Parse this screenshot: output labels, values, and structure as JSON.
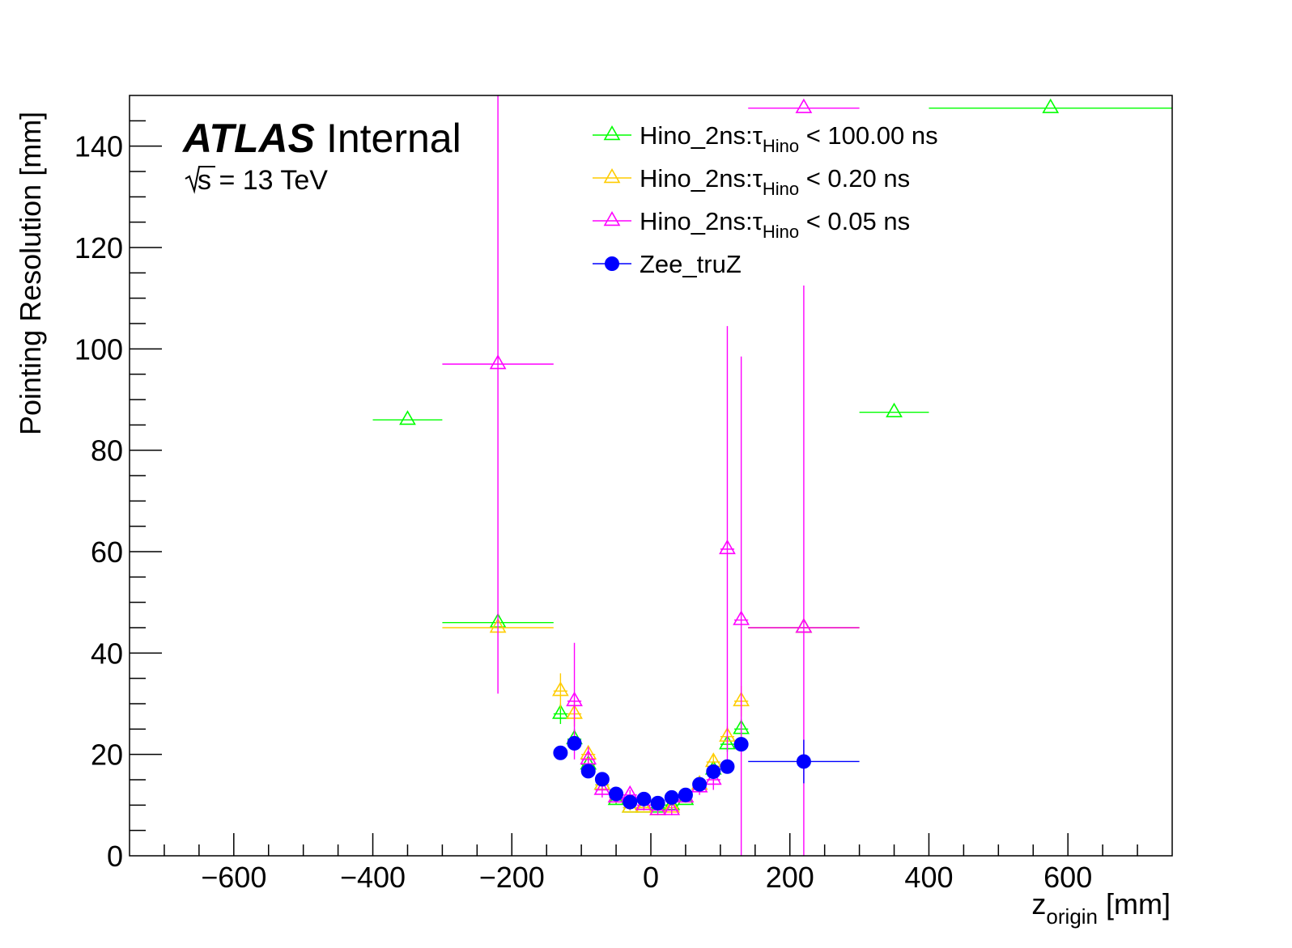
{
  "chart_data": {
    "type": "scatter",
    "xlabel": "z",
    "xlabel_sub": "origin",
    "xlabel_unit": "[mm]",
    "ylabel": "Pointing Resolution [mm]",
    "xlim": [
      -750,
      750
    ],
    "ylim": [
      0,
      150
    ],
    "x_ticks": [
      -600,
      -400,
      -200,
      0,
      200,
      400,
      600
    ],
    "y_ticks": [
      0,
      20,
      40,
      60,
      80,
      100,
      120,
      140
    ],
    "x_tick_labels": [
      "−600",
      "−400",
      "−200",
      "0",
      "200",
      "400",
      "600"
    ],
    "y_tick_labels": [
      "0",
      "20",
      "40",
      "60",
      "80",
      "100",
      "120",
      "140"
    ],
    "grid": false,
    "legend_position": "top-center",
    "annotations": {
      "experiment": "ATLAS",
      "status": "Internal",
      "energy_sqrt": "s",
      "energy_rest": " = 13 TeV"
    },
    "series": [
      {
        "name": "Hino_2ns:τ",
        "name_sub": "Hino",
        "name_rest": " < 100.00 ns",
        "color": "#00ff00",
        "marker": "open-triangle",
        "points": [
          {
            "x": -350,
            "y": 86,
            "xerr": 50,
            "yerr": 0
          },
          {
            "x": -220,
            "y": 46,
            "xerr": 80,
            "yerr": 0
          },
          {
            "x": -130,
            "y": 28,
            "xerr": 10,
            "yerr": 2
          },
          {
            "x": -110,
            "y": 23,
            "xerr": 10,
            "yerr": 2
          },
          {
            "x": -90,
            "y": 18,
            "xerr": 10,
            "yerr": 1
          },
          {
            "x": -70,
            "y": 14,
            "xerr": 10,
            "yerr": 1
          },
          {
            "x": -50,
            "y": 11,
            "xerr": 10,
            "yerr": 0.8
          },
          {
            "x": -30,
            "y": 9.5,
            "xerr": 10,
            "yerr": 0.5
          },
          {
            "x": -10,
            "y": 9.5,
            "xerr": 10,
            "yerr": 0.5
          },
          {
            "x": 10,
            "y": 9.5,
            "xerr": 10,
            "yerr": 0.5
          },
          {
            "x": 30,
            "y": 10,
            "xerr": 10,
            "yerr": 0.5
          },
          {
            "x": 50,
            "y": 11,
            "xerr": 10,
            "yerr": 0.5
          },
          {
            "x": 70,
            "y": 14,
            "xerr": 10,
            "yerr": 1
          },
          {
            "x": 90,
            "y": 17,
            "xerr": 10,
            "yerr": 1
          },
          {
            "x": 110,
            "y": 22,
            "xerr": 10,
            "yerr": 1.5
          },
          {
            "x": 130,
            "y": 25,
            "xerr": 10,
            "yerr": 2
          },
          {
            "x": 220,
            "y": 45,
            "xerr": 80,
            "yerr": 0
          },
          {
            "x": 350,
            "y": 87.5,
            "xerr": 50,
            "yerr": 0
          },
          {
            "x": 575,
            "y": 147.5,
            "xerr": 175,
            "yerr": 0
          }
        ]
      },
      {
        "name": "Hino_2ns:τ",
        "name_sub": "Hino",
        "name_rest": " < 0.20 ns",
        "color": "#ffcc00",
        "marker": "open-triangle",
        "points": [
          {
            "x": -220,
            "y": 45,
            "xerr": 80,
            "yerr": 0
          },
          {
            "x": -130,
            "y": 32.5,
            "xerr": 10,
            "yerr": 3.5
          },
          {
            "x": -110,
            "y": 28,
            "xerr": 10,
            "yerr": 2.5
          },
          {
            "x": -90,
            "y": 20,
            "xerr": 10,
            "yerr": 1.5
          },
          {
            "x": -70,
            "y": 14,
            "xerr": 10,
            "yerr": 1
          },
          {
            "x": -50,
            "y": 11.5,
            "xerr": 10,
            "yerr": 0.8
          },
          {
            "x": -30,
            "y": 9.5,
            "xerr": 10,
            "yerr": 0.6
          },
          {
            "x": -10,
            "y": 9.5,
            "xerr": 10,
            "yerr": 0.6
          },
          {
            "x": 10,
            "y": 9,
            "xerr": 10,
            "yerr": 0.6
          },
          {
            "x": 30,
            "y": 9.5,
            "xerr": 10,
            "yerr": 0.6
          },
          {
            "x": 50,
            "y": 11.5,
            "xerr": 10,
            "yerr": 0.8
          },
          {
            "x": 70,
            "y": 14,
            "xerr": 10,
            "yerr": 1
          },
          {
            "x": 90,
            "y": 18.5,
            "xerr": 10,
            "yerr": 1.5
          },
          {
            "x": 110,
            "y": 23.5,
            "xerr": 10,
            "yerr": 2
          },
          {
            "x": 130,
            "y": 30.5,
            "xerr": 10,
            "yerr": 3
          },
          {
            "x": 220,
            "y": 45,
            "xerr": 80,
            "yerr": 0
          }
        ]
      },
      {
        "name": "Hino_2ns:τ",
        "name_sub": "Hino",
        "name_rest": " < 0.05 ns",
        "color": "#ff00ff",
        "marker": "open-triangle",
        "points": [
          {
            "x": -220,
            "y": 97,
            "xerr": 80,
            "yerr": 65
          },
          {
            "x": -110,
            "y": 30.5,
            "xerr": 10,
            "yerr": 11.5
          },
          {
            "x": -90,
            "y": 19,
            "xerr": 10,
            "yerr": 2.5
          },
          {
            "x": -70,
            "y": 13,
            "xerr": 10,
            "yerr": 1.5
          },
          {
            "x": -50,
            "y": 11.5,
            "xerr": 10,
            "yerr": 1
          },
          {
            "x": -30,
            "y": 12,
            "xerr": 10,
            "yerr": 1
          },
          {
            "x": -10,
            "y": 10,
            "xerr": 10,
            "yerr": 1
          },
          {
            "x": 10,
            "y": 9,
            "xerr": 10,
            "yerr": 1
          },
          {
            "x": 30,
            "y": 9,
            "xerr": 10,
            "yerr": 1
          },
          {
            "x": 50,
            "y": 11.5,
            "xerr": 10,
            "yerr": 1
          },
          {
            "x": 70,
            "y": 13.5,
            "xerr": 10,
            "yerr": 1.5
          },
          {
            "x": 90,
            "y": 15,
            "xerr": 10,
            "yerr": 2
          },
          {
            "x": 110,
            "y": 60.5,
            "xerr": 10,
            "yerr": 44
          },
          {
            "x": 130,
            "y": 46.5,
            "xerr": 10,
            "yerr": 52
          },
          {
            "x": 220,
            "y": 147.5,
            "xerr": 80,
            "yerr": 0
          },
          {
            "x": 220,
            "y": 45,
            "xerr": 80,
            "yerr": 67.5
          }
        ]
      },
      {
        "name": "Zee_truZ",
        "name_sub": "",
        "name_rest": "",
        "color": "#0000ff",
        "marker": "filled-circle",
        "points": [
          {
            "x": -130,
            "y": 20.3,
            "xerr": 10,
            "yerr": 0
          },
          {
            "x": -110,
            "y": 22.2,
            "xerr": 10,
            "yerr": 0
          },
          {
            "x": -90,
            "y": 16.7,
            "xerr": 10,
            "yerr": 0
          },
          {
            "x": -70,
            "y": 15.1,
            "xerr": 10,
            "yerr": 0
          },
          {
            "x": -50,
            "y": 12.2,
            "xerr": 10,
            "yerr": 0
          },
          {
            "x": -30,
            "y": 10.6,
            "xerr": 10,
            "yerr": 0
          },
          {
            "x": -10,
            "y": 11.2,
            "xerr": 10,
            "yerr": 0
          },
          {
            "x": 10,
            "y": 10.4,
            "xerr": 10,
            "yerr": 0
          },
          {
            "x": 30,
            "y": 11.5,
            "xerr": 10,
            "yerr": 0
          },
          {
            "x": 50,
            "y": 12,
            "xerr": 10,
            "yerr": 0
          },
          {
            "x": 70,
            "y": 14.1,
            "xerr": 10,
            "yerr": 0
          },
          {
            "x": 90,
            "y": 16.6,
            "xerr": 10,
            "yerr": 0
          },
          {
            "x": 110,
            "y": 17.6,
            "xerr": 10,
            "yerr": 0
          },
          {
            "x": 130,
            "y": 22,
            "xerr": 10,
            "yerr": 0
          },
          {
            "x": 220,
            "y": 18.6,
            "xerr": 80,
            "yerr": 4.3
          }
        ]
      }
    ]
  }
}
